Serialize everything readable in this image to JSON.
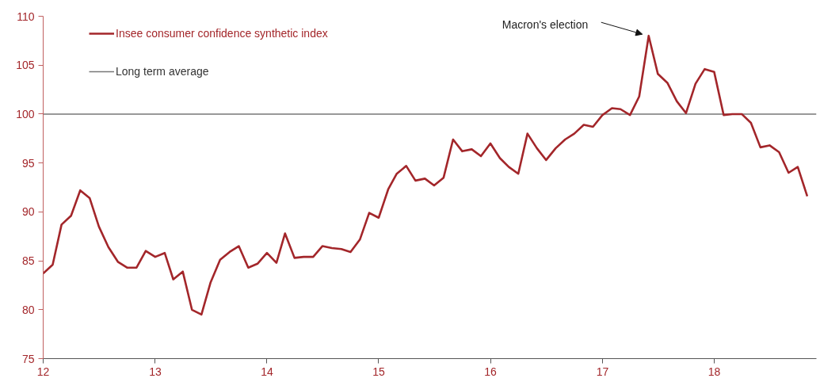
{
  "chart_data": {
    "type": "line",
    "x": [
      "2012-01",
      "2012-02",
      "2012-03",
      "2012-04",
      "2012-05",
      "2012-06",
      "2012-07",
      "2012-08",
      "2012-09",
      "2012-10",
      "2012-11",
      "2012-12",
      "2013-01",
      "2013-02",
      "2013-03",
      "2013-04",
      "2013-05",
      "2013-06",
      "2013-07",
      "2013-08",
      "2013-09",
      "2013-10",
      "2013-11",
      "2013-12",
      "2014-01",
      "2014-02",
      "2014-03",
      "2014-04",
      "2014-05",
      "2014-06",
      "2014-07",
      "2014-08",
      "2014-09",
      "2014-10",
      "2014-11",
      "2014-12",
      "2015-01",
      "2015-02",
      "2015-03",
      "2015-04",
      "2015-05",
      "2015-06",
      "2015-07",
      "2015-08",
      "2015-09",
      "2015-10",
      "2015-11",
      "2015-12",
      "2016-01",
      "2016-02",
      "2016-03",
      "2016-04",
      "2016-05",
      "2016-06",
      "2016-07",
      "2016-08",
      "2016-09",
      "2016-10",
      "2016-11",
      "2016-12",
      "2017-01",
      "2017-02",
      "2017-03",
      "2017-04",
      "2017-05",
      "2017-06",
      "2017-07",
      "2017-08",
      "2017-09",
      "2017-10",
      "2017-11",
      "2017-12",
      "2018-01",
      "2018-02",
      "2018-03",
      "2018-04",
      "2018-05",
      "2018-06",
      "2018-07",
      "2018-08",
      "2018-09",
      "2018-10",
      "2018-11"
    ],
    "series": [
      {
        "name": "Insee consumer confidence synthetic index",
        "color": "#a3262a",
        "values": [
          83.7,
          84.6,
          88.7,
          89.6,
          92.2,
          91.4,
          88.5,
          86.4,
          84.9,
          84.3,
          84.3,
          86.0,
          85.4,
          85.8,
          83.1,
          83.9,
          80.0,
          79.5,
          82.8,
          85.1,
          85.9,
          86.5,
          84.3,
          84.7,
          85.8,
          84.8,
          87.8,
          85.3,
          85.4,
          85.4,
          86.5,
          86.3,
          86.2,
          85.9,
          87.2,
          89.9,
          89.4,
          92.3,
          93.9,
          94.7,
          93.2,
          93.4,
          92.7,
          93.5,
          97.4,
          96.2,
          96.4,
          95.7,
          97.0,
          95.5,
          94.6,
          93.9,
          98.0,
          96.5,
          95.3,
          96.5,
          97.4,
          98.0,
          98.9,
          98.7,
          99.9,
          100.6,
          100.5,
          99.9,
          101.8,
          108.0,
          104.1,
          103.2,
          101.3,
          100.1,
          103.1,
          104.6,
          104.3,
          99.9,
          100.0,
          100.0,
          99.1,
          96.6,
          96.8,
          96.1,
          94.0,
          94.6,
          91.6
        ]
      }
    ],
    "ref_lines": [
      {
        "axis": "y",
        "value": 100,
        "label": "Long term average",
        "color": "#777777"
      }
    ],
    "annotations": [
      {
        "text": "Macron's election",
        "x": "2017-06",
        "y": 108
      }
    ],
    "ylim": [
      75,
      110
    ],
    "yticks": [
      75,
      80,
      85,
      90,
      95,
      100,
      105,
      110
    ],
    "xlim": [
      "2012-01",
      "2018-12"
    ],
    "xticks": [
      {
        "value": "2012-01",
        "label": "12"
      },
      {
        "value": "2013-01",
        "label": "13"
      },
      {
        "value": "2014-01",
        "label": "14"
      },
      {
        "value": "2015-01",
        "label": "15"
      },
      {
        "value": "2016-01",
        "label": "16"
      },
      {
        "value": "2017-01",
        "label": "17"
      },
      {
        "value": "2018-01",
        "label": "18"
      }
    ],
    "grid": false,
    "legend": "top left",
    "marker": "none",
    "line_style": "solid"
  }
}
